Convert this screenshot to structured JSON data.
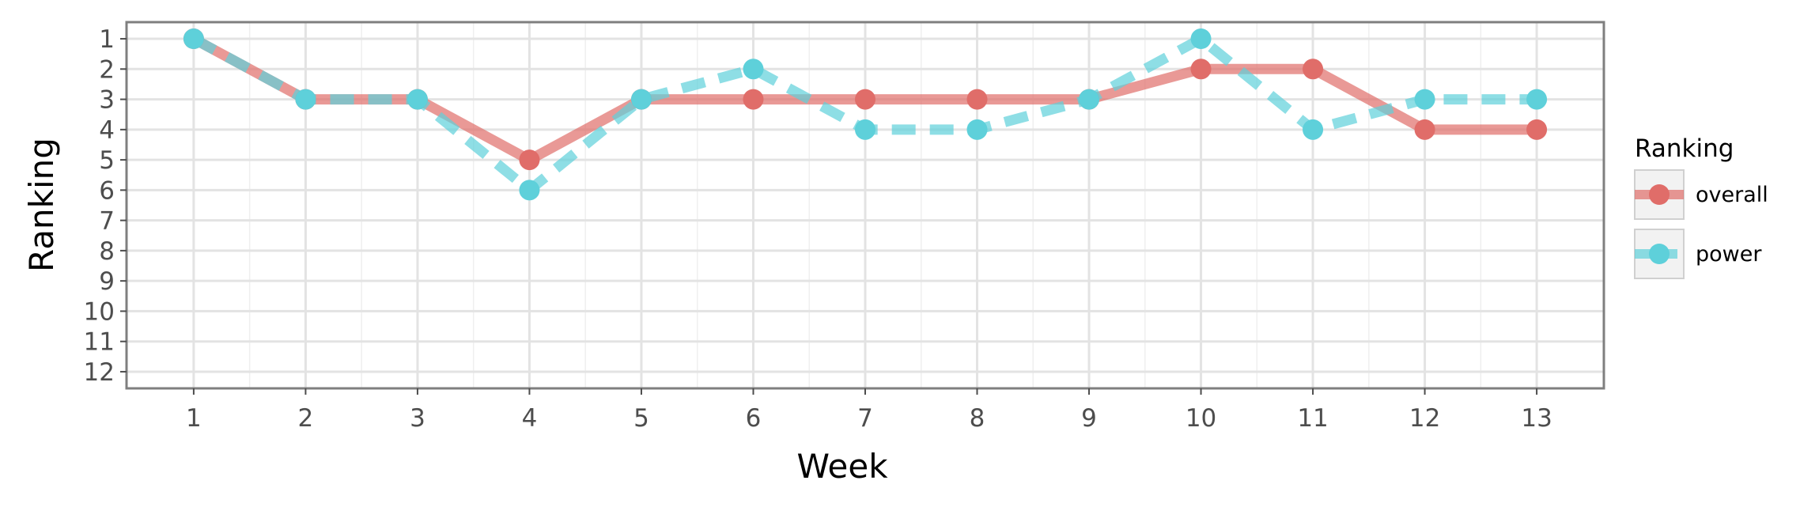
{
  "chart_data": {
    "type": "line",
    "xlabel": "Week",
    "ylabel": "Ranking",
    "x": [
      1,
      2,
      3,
      4,
      5,
      6,
      7,
      8,
      9,
      10,
      11,
      12,
      13
    ],
    "xlim": [
      0.4,
      13.6
    ],
    "ylim": [
      12.55,
      0.45
    ],
    "y_reversed": true,
    "y_ticks": [
      1,
      2,
      3,
      4,
      5,
      6,
      7,
      8,
      9,
      10,
      11,
      12
    ],
    "grid": true,
    "legend": {
      "title": "Ranking",
      "position": "right"
    },
    "series": [
      {
        "name": "overall",
        "color": "#E06D69",
        "line_style": "solid",
        "values": [
          1,
          3,
          3,
          5,
          3,
          3,
          3,
          3,
          3,
          2,
          2,
          4,
          4
        ]
      },
      {
        "name": "power",
        "color": "#5ED0DA",
        "line_style": "dashed",
        "values": [
          1,
          3,
          3,
          6,
          3,
          2,
          4,
          4,
          3,
          1,
          4,
          3,
          3
        ]
      }
    ]
  }
}
